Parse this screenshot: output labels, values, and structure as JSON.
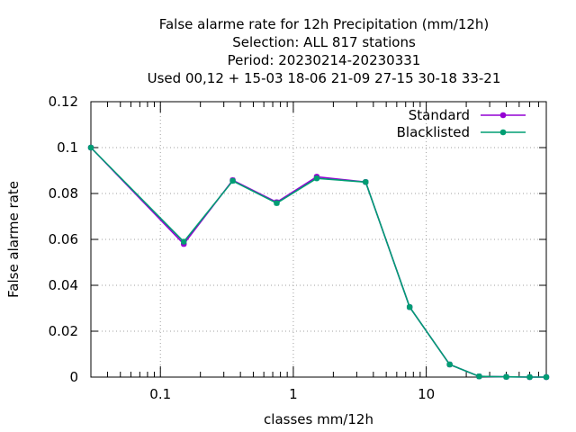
{
  "chart_data": {
    "type": "line",
    "title_lines": [
      "False alarme rate  for 12h Precipitation (mm/12h)",
      "Selection: ALL    817 stations",
      "Period: 20230214-20230331",
      "Used  00,12  + 15-03 18-06 21-09 27-15 30-18 33-21"
    ],
    "xlabel": "classes mm/12h",
    "ylabel": "False alarme rate",
    "x_scale": "log",
    "xlim": [
      0.03,
      80
    ],
    "ylim": [
      0,
      0.12
    ],
    "x_ticks": [
      {
        "value": 0.1,
        "label": "0.1"
      },
      {
        "value": 1,
        "label": "1"
      },
      {
        "value": 10,
        "label": "10"
      }
    ],
    "y_ticks": [
      {
        "value": 0,
        "label": "0"
      },
      {
        "value": 0.02,
        "label": "0.02"
      },
      {
        "value": 0.04,
        "label": "0.04"
      },
      {
        "value": 0.06,
        "label": "0.06"
      },
      {
        "value": 0.08,
        "label": "0.08"
      },
      {
        "value": 0.1,
        "label": "0.1"
      },
      {
        "value": 0.12,
        "label": "0.12"
      }
    ],
    "grid": true,
    "legend_position": "top-right",
    "series": [
      {
        "name": "Standard",
        "color": "#9400d3",
        "x": [
          0.03,
          0.15,
          0.35,
          0.75,
          1.5,
          3.5,
          7.5,
          15,
          25,
          40,
          60,
          80
        ],
        "y": [
          0.1,
          0.058,
          0.0858,
          0.0762,
          0.0873,
          0.085,
          0.0305,
          0.0055,
          0.0003,
          0.0001,
          0.0,
          0.0
        ]
      },
      {
        "name": "Blacklisted",
        "color": "#009e73",
        "x": [
          0.03,
          0.15,
          0.35,
          0.75,
          1.5,
          3.5,
          7.5,
          15,
          25,
          40,
          60,
          80
        ],
        "y": [
          0.1,
          0.059,
          0.0855,
          0.0758,
          0.0866,
          0.085,
          0.0305,
          0.0055,
          0.0003,
          0.0001,
          0.0,
          0.0
        ]
      }
    ]
  }
}
